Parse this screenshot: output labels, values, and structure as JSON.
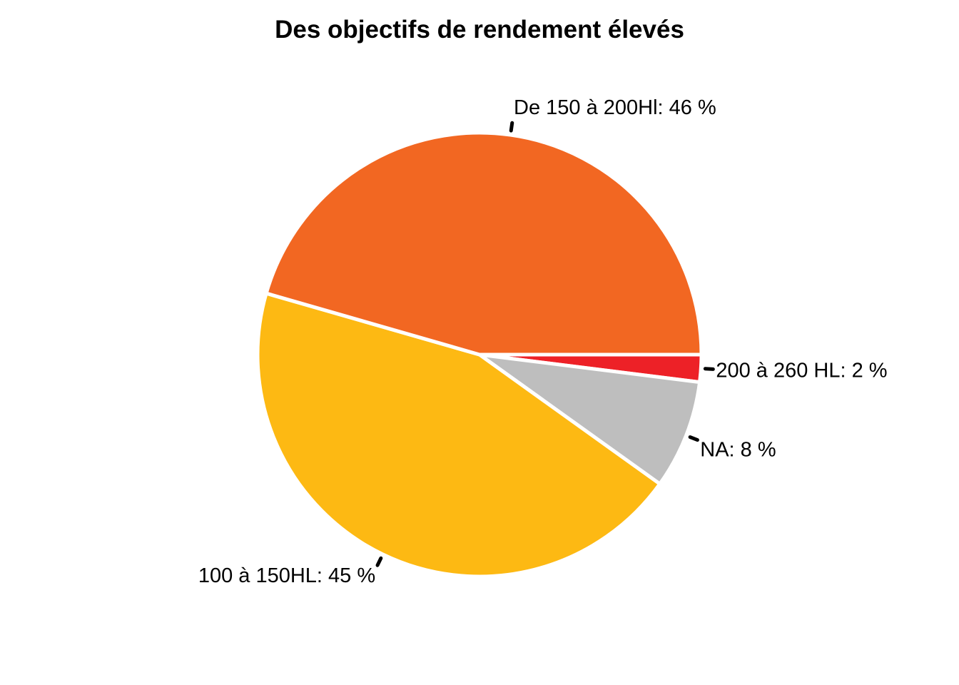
{
  "chart_data": {
    "type": "pie",
    "title": "Des objectifs de rendement élevés",
    "start_angle": "3 o'clock, clockwise",
    "slices": [
      {
        "label": "200 à 260 HL: 2 %",
        "category": "200 à 260 HL",
        "value": 2,
        "color": "#ED2127"
      },
      {
        "label": "NA: 8 %",
        "category": "NA",
        "value": 8,
        "color": "#BEBEBE"
      },
      {
        "label": "100 à 150HL: 45 %",
        "category": "100 à 150HL",
        "value": 45,
        "color": "#FDB913"
      },
      {
        "label": "De 150 à 200Hl: 46 %",
        "category": "De 150 à 200Hl",
        "value": 46,
        "color": "#F26722"
      }
    ]
  }
}
